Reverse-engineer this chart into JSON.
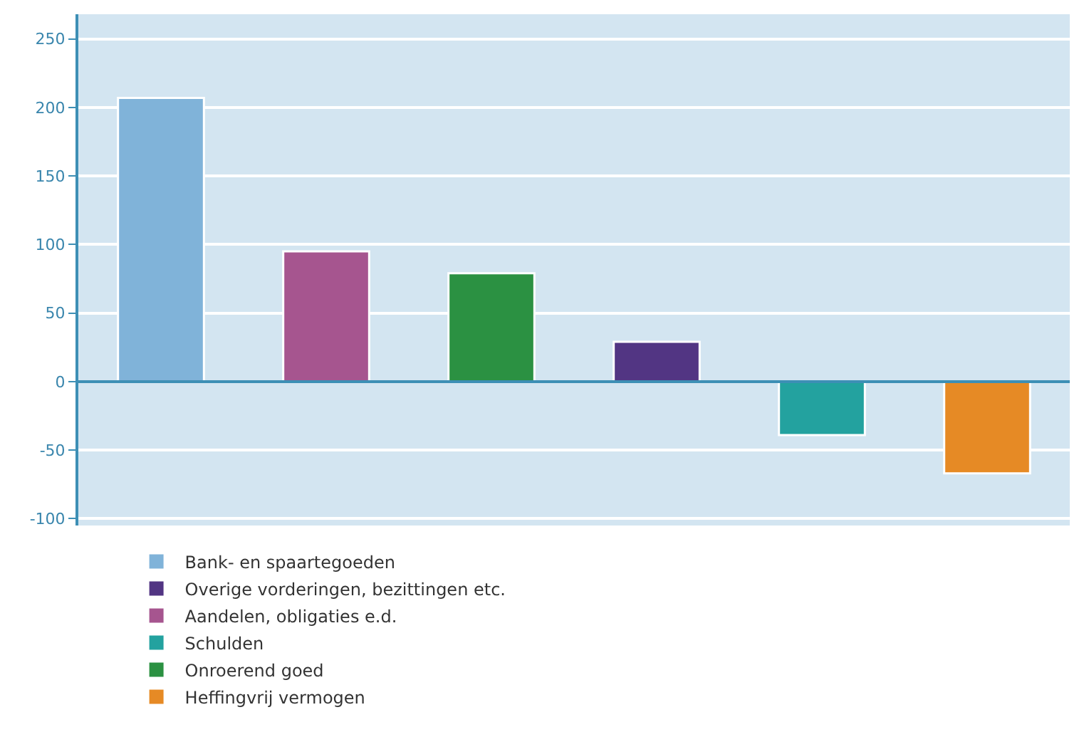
{
  "chart_data": {
    "type": "bar",
    "categories": [
      null,
      null,
      null,
      null,
      null,
      null
    ],
    "series": [
      {
        "name": "Bank- en spaartegoeden",
        "color": "#80b3d9",
        "values": [
          207,
          null,
          null,
          null,
          null,
          null
        ]
      },
      {
        "name": "Aandelen, obligaties e.d.",
        "color": "#a6558f",
        "values": [
          null,
          95,
          null,
          null,
          null,
          null
        ]
      },
      {
        "name": "Onroerend goed",
        "color": "#2b9142",
        "values": [
          null,
          null,
          79,
          null,
          null,
          null
        ]
      },
      {
        "name": "Overige vorderingen, bezittingen etc.",
        "color": "#523583",
        "values": [
          null,
          null,
          null,
          29,
          null,
          null
        ]
      },
      {
        "name": "Schulden",
        "color": "#23a29f",
        "values": [
          null,
          null,
          null,
          null,
          -39,
          null
        ]
      },
      {
        "name": "Heffingvrij vermogen",
        "color": "#e68a25",
        "values": [
          null,
          null,
          null,
          null,
          null,
          -67
        ]
      }
    ],
    "ylim": [
      -105,
      268
    ],
    "yticks": [
      -100,
      -50,
      0,
      50,
      100,
      150,
      200,
      250
    ],
    "ref_lines": [
      {
        "axis": "y",
        "value": 0,
        "color": "#3d8fb5"
      }
    ],
    "grid": "y",
    "legend": "bottom",
    "tick_labels": "y"
  }
}
